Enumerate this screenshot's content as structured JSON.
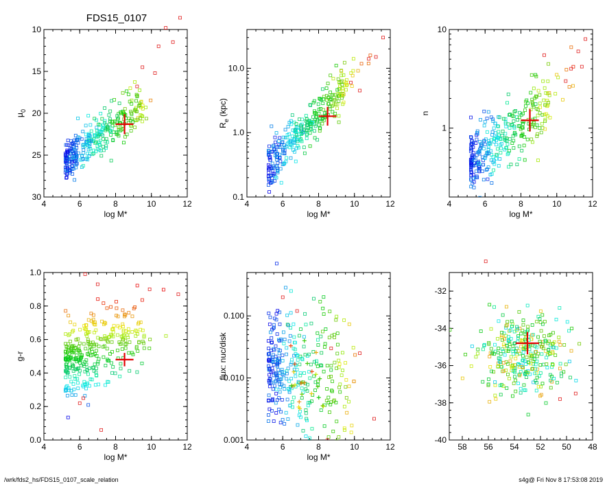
{
  "figure_title": "FDS15_0107",
  "footer": {
    "left": "/wrk/fds2_hs/FDS15_0107_scale_relation",
    "right": "s4g@  Fri Nov  8 17:53:08 2019"
  },
  "colors": {
    "marker": "#e00000",
    "ink": "#000000"
  },
  "chart_data": [
    {
      "type": "scatter",
      "title": "FDS15_0107",
      "xlabel": "log M*",
      "ylabel": "μ0",
      "ylabel_parts": {
        "base": "μ",
        "sub": "0"
      },
      "xlim": [
        4,
        12
      ],
      "ylim": [
        30,
        10
      ],
      "y_inverted": true,
      "log_y": false,
      "x_ticks": [
        "4",
        "6",
        "8",
        "10",
        "12"
      ],
      "y_ticks": [
        "10",
        "15",
        "20",
        "25",
        "30"
      ],
      "marker": {
        "x": 8.5,
        "y": 21.3,
        "xerr": 0.5,
        "yerr": 1.2
      },
      "trend": {
        "x0": 5.0,
        "y0": 26.0,
        "slope": -1.55,
        "scatter": 1.2
      },
      "extra_points": [
        [
          9.2,
          16.8
        ],
        [
          10.4,
          12.0
        ],
        [
          10.8,
          9.8
        ],
        [
          11.6,
          8.6
        ],
        [
          9.5,
          14.5
        ],
        [
          10.2,
          15.2
        ],
        [
          11.2,
          11.5
        ]
      ],
      "grid": false
    },
    {
      "type": "scatter",
      "xlabel": "log M*",
      "ylabel": "Re (kpc)",
      "ylabel_parts": {
        "base": "R",
        "sub": "e",
        "tail": " (kpc)"
      },
      "xlim": [
        4,
        12
      ],
      "ylim": [
        0.1,
        40
      ],
      "log_y": true,
      "x_ticks": [
        "4",
        "6",
        "8",
        "10",
        "12"
      ],
      "y_ticks": [
        "0.1",
        "1.0",
        "10.0"
      ],
      "marker": {
        "x": 8.5,
        "y": 1.8,
        "xerr": 0.5,
        "yerr_factor": 1.4
      },
      "trend": {
        "x0": 5.2,
        "y0": -0.55,
        "slope": 0.3,
        "scatter": 0.17
      },
      "extra_points": [
        [
          11.6,
          30
        ],
        [
          10.8,
          14
        ],
        [
          11.2,
          15
        ],
        [
          9.8,
          6
        ],
        [
          10.3,
          4.5
        ]
      ],
      "grid": false
    },
    {
      "type": "scatter",
      "xlabel": "log M*",
      "ylabel": "n",
      "xlim": [
        4,
        12
      ],
      "ylim": [
        0.2,
        10
      ],
      "log_y": true,
      "x_ticks": [
        "4",
        "6",
        "8",
        "10",
        "12"
      ],
      "y_ticks": [
        "1",
        "10"
      ],
      "marker": {
        "x": 8.5,
        "y": 1.2,
        "xerr": 0.5,
        "yerr_factor": 1.3
      },
      "trend": {
        "x0": 5.2,
        "y0": -0.35,
        "slope": 0.14,
        "scatter": 0.16
      },
      "extra_points": [
        [
          11.6,
          8
        ],
        [
          11.2,
          6
        ],
        [
          10.8,
          4
        ],
        [
          10.5,
          3
        ],
        [
          11.4,
          4.2
        ],
        [
          9.3,
          5.5
        ]
      ],
      "grid": false
    },
    {
      "type": "scatter",
      "xlabel": "log M*",
      "ylabel": "g-r",
      "xlim": [
        4,
        12
      ],
      "ylim": [
        0.0,
        1.0
      ],
      "log_y": false,
      "x_ticks": [
        "4",
        "6",
        "8",
        "10",
        "12"
      ],
      "y_ticks": [
        "0.0",
        "0.2",
        "0.4",
        "0.6",
        "0.8",
        "1.0"
      ],
      "marker": {
        "x": 8.5,
        "y": 0.48,
        "xerr": 0.5,
        "yerr": 0.04
      },
      "trend": {
        "x0": 5.0,
        "y0": 0.45,
        "slope": 0.045,
        "scatter": 0.11
      },
      "extra_points": [
        [
          6.3,
          0.99
        ],
        [
          7.0,
          0.93
        ],
        [
          9.9,
          0.9
        ],
        [
          11.5,
          0.87
        ],
        [
          7.2,
          0.06
        ],
        [
          6.0,
          0.22
        ],
        [
          6.2,
          0.25
        ]
      ],
      "grid": false
    },
    {
      "type": "scatter",
      "xlabel": "log M*",
      "ylabel": "flux: nuc/disk",
      "xlim": [
        4,
        12
      ],
      "ylim": [
        0.001,
        0.5
      ],
      "log_y": true,
      "x_ticks": [
        "4",
        "6",
        "8",
        "10",
        "12"
      ],
      "y_ticks": [
        "0.001",
        "0.010",
        "0.100"
      ],
      "marker": null,
      "trend": {
        "x0": 5.5,
        "y0": -1.8,
        "slope": -0.05,
        "scatter": 0.5
      },
      "extra_points": [
        [
          6.0,
          0.2
        ],
        [
          6.8,
          0.12
        ],
        [
          8.7,
          0.03
        ],
        [
          10.3,
          0.025
        ],
        [
          11.1,
          0.0022
        ],
        [
          8.5,
          0.001
        ]
      ],
      "grid": false
    },
    {
      "type": "scatter",
      "xlabel": "",
      "ylabel": "",
      "xlim": [
        59,
        48
      ],
      "ylim": [
        -40,
        -31
      ],
      "x_inverted": true,
      "log_y": false,
      "x_ticks": [
        "58",
        "56",
        "54",
        "52",
        "50",
        "48"
      ],
      "y_ticks": [
        "-32",
        "-34",
        "-36",
        "-38",
        "-40"
      ],
      "marker": {
        "x": 53,
        "y": -34.8,
        "xerr": 0.9,
        "yerr": 0.6
      },
      "trend": {
        "x0": 53.5,
        "y0": -35.4,
        "spread_x": 2.2,
        "spread_y": 1.1
      },
      "extra_points": [
        [
          56.2,
          -30.4
        ],
        [
          49.3,
          -37.5
        ],
        [
          50.5,
          -37.8
        ]
      ],
      "grid": false
    }
  ]
}
